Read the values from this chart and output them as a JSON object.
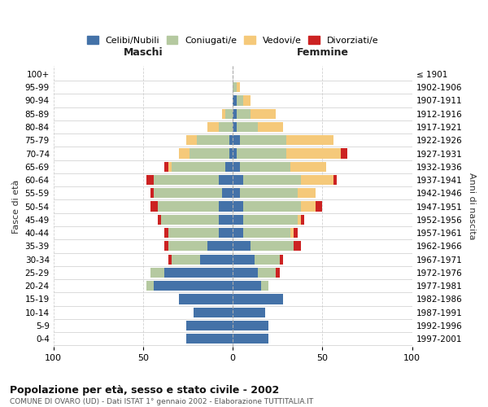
{
  "age_groups": [
    "0-4",
    "5-9",
    "10-14",
    "15-19",
    "20-24",
    "25-29",
    "30-34",
    "35-39",
    "40-44",
    "45-49",
    "50-54",
    "55-59",
    "60-64",
    "65-69",
    "70-74",
    "75-79",
    "80-84",
    "85-89",
    "90-94",
    "95-99",
    "100+"
  ],
  "birth_years": [
    "1997-2001",
    "1992-1996",
    "1987-1991",
    "1982-1986",
    "1977-1981",
    "1972-1976",
    "1967-1971",
    "1962-1966",
    "1957-1961",
    "1952-1956",
    "1947-1951",
    "1942-1946",
    "1937-1941",
    "1932-1936",
    "1927-1931",
    "1922-1926",
    "1917-1921",
    "1912-1916",
    "1907-1911",
    "1902-1906",
    "≤ 1901"
  ],
  "colors": {
    "celibi": "#4472a8",
    "coniugati": "#b5c9a0",
    "vedovi": "#f5c97a",
    "divorziati": "#cc2222"
  },
  "maschi": {
    "celibi": [
      26,
      26,
      22,
      30,
      44,
      38,
      18,
      14,
      8,
      8,
      8,
      6,
      8,
      4,
      2,
      2,
      0,
      0,
      0,
      0,
      0
    ],
    "coniugati": [
      0,
      0,
      0,
      0,
      4,
      8,
      16,
      22,
      28,
      32,
      34,
      38,
      36,
      30,
      22,
      18,
      8,
      4,
      0,
      0,
      0
    ],
    "vedovi": [
      0,
      0,
      0,
      0,
      0,
      0,
      0,
      0,
      0,
      0,
      0,
      0,
      0,
      2,
      6,
      6,
      6,
      2,
      0,
      0,
      0
    ],
    "divorziati": [
      0,
      0,
      0,
      0,
      0,
      0,
      2,
      2,
      2,
      2,
      4,
      2,
      4,
      2,
      0,
      0,
      0,
      0,
      0,
      0,
      0
    ]
  },
  "femmine": {
    "celibi": [
      20,
      20,
      18,
      28,
      16,
      14,
      12,
      10,
      6,
      6,
      6,
      4,
      6,
      4,
      2,
      4,
      2,
      2,
      2,
      0,
      0
    ],
    "coniugati": [
      0,
      0,
      0,
      0,
      4,
      10,
      14,
      24,
      26,
      30,
      32,
      32,
      32,
      28,
      28,
      26,
      12,
      8,
      4,
      2,
      0
    ],
    "vedovi": [
      0,
      0,
      0,
      0,
      0,
      0,
      0,
      0,
      2,
      2,
      8,
      10,
      18,
      20,
      30,
      26,
      14,
      14,
      4,
      2,
      0
    ],
    "divorziati": [
      0,
      0,
      0,
      0,
      0,
      2,
      2,
      4,
      2,
      2,
      4,
      0,
      2,
      0,
      4,
      0,
      0,
      0,
      0,
      0,
      0
    ]
  },
  "title": "Popolazione per età, sesso e stato civile - 2002",
  "subtitle": "COMUNE DI OVARO (UD) - Dati ISTAT 1° gennaio 2002 - Elaborazione TUTTITALIA.IT",
  "xlabel_maschi": "Maschi",
  "xlabel_femmine": "Femmine",
  "ylabel_left": "Fasce di età",
  "ylabel_right": "Anni di nascita",
  "xlim": 100,
  "background_color": "#ffffff",
  "grid_color": "#cccccc",
  "legend_labels": [
    "Celibi/Nubili",
    "Coniugati/e",
    "Vedovi/e",
    "Divorziati/e"
  ]
}
